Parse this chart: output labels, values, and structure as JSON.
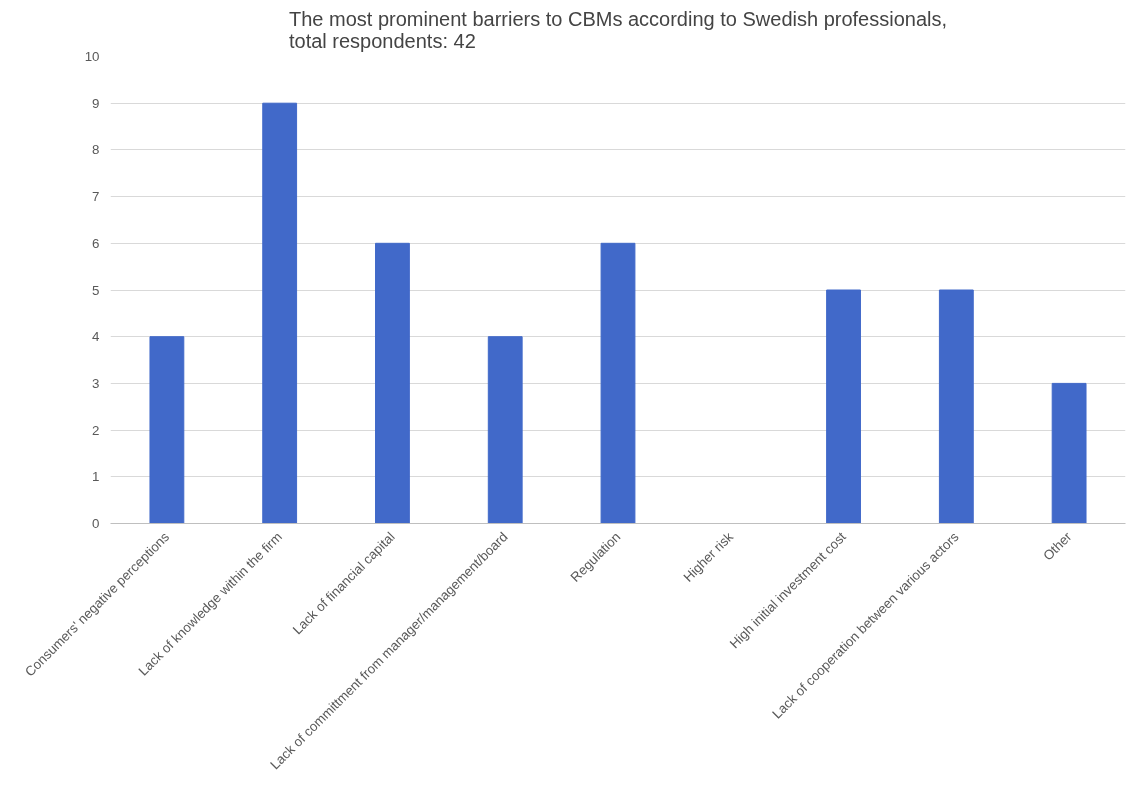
{
  "chart_data": {
    "type": "bar",
    "title": "The most prominent barriers to CBMs according to Swedish professionals,\ntotal respondents: 42",
    "categories": [
      "Consumers' negative perceptions",
      "Lack of knowledge within the firm",
      "Lack of financial capital",
      "Lack of committment from manager/management/board",
      "Regulation",
      "Higher risk",
      "High initial investment cost",
      "Lack of cooperation between various actors",
      "Other"
    ],
    "values": [
      4,
      9,
      6,
      4,
      6,
      0,
      5,
      5,
      3
    ],
    "color": "#4169c9",
    "ylim": [
      0,
      10
    ],
    "yticks": [
      0,
      1,
      2,
      3,
      4,
      5,
      6,
      7,
      8,
      9,
      10
    ],
    "grid": "y"
  }
}
